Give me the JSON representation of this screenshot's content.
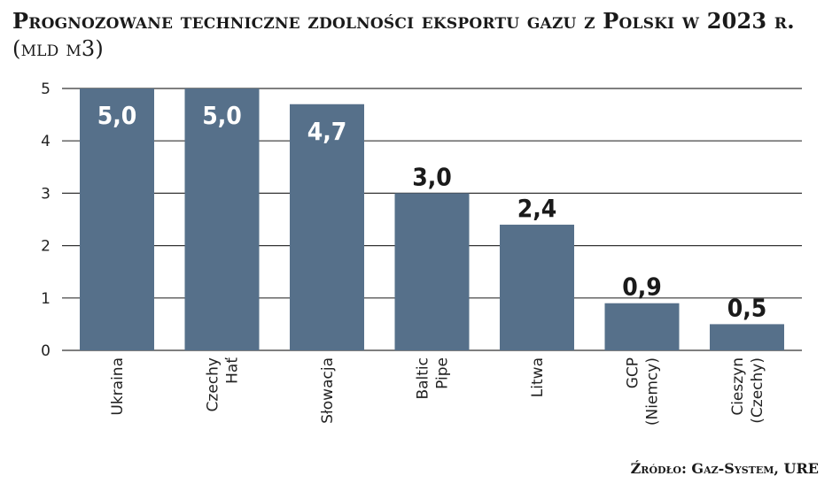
{
  "title": "Prognozowane techniczne zdolności eksportu gazu z Polski w 2023 r.",
  "unit": "(mld m3)",
  "source": "Źródło: Gaz-System, URE",
  "colors": {
    "bar": "#56708a",
    "grid": "#333333",
    "text": "#1a1a1a",
    "label_inside": "#ffffff"
  },
  "chart_data": {
    "type": "bar",
    "categories": [
      "Ukraina",
      "Czechy Hať",
      "Słowacja",
      "Baltic Pipe",
      "Litwa",
      "GCP (Niemcy)",
      "Cieszyn (Czechy)"
    ],
    "category_lines": [
      [
        "Ukraina"
      ],
      [
        "Czechy",
        "Hať"
      ],
      [
        "Słowacja"
      ],
      [
        "Baltic",
        "Pipe"
      ],
      [
        "Litwa"
      ],
      [
        "GCP",
        "(Niemcy)"
      ],
      [
        "Cieszyn",
        "(Czechy)"
      ]
    ],
    "values": [
      5.0,
      5.0,
      4.7,
      3.0,
      2.4,
      0.9,
      0.5
    ],
    "value_labels": [
      "5,0",
      "5,0",
      "4,7",
      "3,0",
      "2,4",
      "0,9",
      "0,5"
    ],
    "yticks": [
      0,
      1,
      2,
      3,
      4,
      5
    ],
    "ylim": [
      0,
      5
    ],
    "grid": true,
    "title": "Prognozowane techniczne zdolności eksportu gazu z Polski w 2023 r.",
    "xlabel": "",
    "ylabel": ""
  }
}
